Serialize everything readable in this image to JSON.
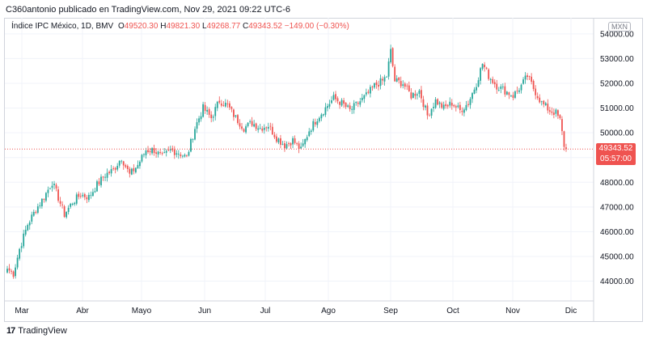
{
  "header": {
    "publisher_line": "C360antonio publicado en TradingView.com, Nov 29, 2021 09:22 UTC-6"
  },
  "legend": {
    "symbol": "Índice IPC México, 1D, BMV",
    "open_label": "O",
    "open_value": "49520.30",
    "high_label": "H",
    "high_value": "49821.30",
    "low_label": "L",
    "low_value": "49268.77",
    "close_label": "C",
    "close_value": "49343.52",
    "change": "−149.00 (−0.30%)"
  },
  "currency": "MXN",
  "last_price": {
    "value": "49343.52",
    "countdown": "05:57:00"
  },
  "footer": {
    "brand": "TradingView",
    "logo_glyph": "17"
  },
  "colors": {
    "up": "#26a69a",
    "down": "#ef5350",
    "grid": "#f0f3fa",
    "axis_text": "#131722",
    "last_price_line": "#ef5350"
  },
  "chart_data": {
    "type": "candlestick",
    "y_axis": {
      "ticks": [
        44000,
        45000,
        46000,
        47000,
        48000,
        49000,
        50000,
        51000,
        52000,
        53000,
        54000
      ],
      "tick_labels": [
        "44000.00",
        "45000.00",
        "46000.00",
        "47000.00",
        "48000.00",
        "49000.00",
        "50000.00",
        "51000.00",
        "52000.00",
        "53000.00",
        "54000.00"
      ],
      "range": [
        43200,
        54650
      ]
    },
    "x_axis": {
      "labels": [
        "Mar",
        "Abr",
        "Mayo",
        "Jun",
        "Jul",
        "Ago",
        "Sep",
        "Oct",
        "Nov",
        "Dic"
      ]
    },
    "grid": true,
    "last_close": 49343.52,
    "anchors": [
      {
        "i": 0,
        "p": 44500
      },
      {
        "i": 3,
        "p": 44300
      },
      {
        "i": 6,
        "p": 45300
      },
      {
        "i": 10,
        "p": 46300
      },
      {
        "i": 14,
        "p": 46900
      },
      {
        "i": 18,
        "p": 47400
      },
      {
        "i": 22,
        "p": 48000
      },
      {
        "i": 24,
        "p": 47600
      },
      {
        "i": 28,
        "p": 46700
      },
      {
        "i": 32,
        "p": 47200
      },
      {
        "i": 36,
        "p": 47500
      },
      {
        "i": 40,
        "p": 47400
      },
      {
        "i": 44,
        "p": 47900
      },
      {
        "i": 48,
        "p": 48300
      },
      {
        "i": 52,
        "p": 48500
      },
      {
        "i": 56,
        "p": 49000
      },
      {
        "i": 60,
        "p": 48300
      },
      {
        "i": 64,
        "p": 48700
      },
      {
        "i": 68,
        "p": 49300
      },
      {
        "i": 72,
        "p": 49300
      },
      {
        "i": 76,
        "p": 49000
      },
      {
        "i": 80,
        "p": 49300
      },
      {
        "i": 84,
        "p": 49200
      },
      {
        "i": 88,
        "p": 49000
      },
      {
        "i": 92,
        "p": 50200
      },
      {
        "i": 96,
        "p": 51000
      },
      {
        "i": 100,
        "p": 50600
      },
      {
        "i": 104,
        "p": 51300
      },
      {
        "i": 108,
        "p": 51100
      },
      {
        "i": 112,
        "p": 50600
      },
      {
        "i": 116,
        "p": 50200
      },
      {
        "i": 120,
        "p": 50400
      },
      {
        "i": 124,
        "p": 50200
      },
      {
        "i": 128,
        "p": 50300
      },
      {
        "i": 132,
        "p": 49800
      },
      {
        "i": 136,
        "p": 49500
      },
      {
        "i": 140,
        "p": 49700
      },
      {
        "i": 144,
        "p": 49300
      },
      {
        "i": 148,
        "p": 50100
      },
      {
        "i": 152,
        "p": 50600
      },
      {
        "i": 156,
        "p": 51000
      },
      {
        "i": 160,
        "p": 51400
      },
      {
        "i": 164,
        "p": 51200
      },
      {
        "i": 168,
        "p": 50900
      },
      {
        "i": 172,
        "p": 51200
      },
      {
        "i": 176,
        "p": 51500
      },
      {
        "i": 180,
        "p": 51900
      },
      {
        "i": 184,
        "p": 52100
      },
      {
        "i": 186,
        "p": 52300
      },
      {
        "i": 188,
        "p": 53300
      },
      {
        "i": 190,
        "p": 52100
      },
      {
        "i": 194,
        "p": 52000
      },
      {
        "i": 198,
        "p": 51500
      },
      {
        "i": 202,
        "p": 51700
      },
      {
        "i": 206,
        "p": 50700
      },
      {
        "i": 210,
        "p": 51300
      },
      {
        "i": 214,
        "p": 51000
      },
      {
        "i": 218,
        "p": 51200
      },
      {
        "i": 222,
        "p": 50900
      },
      {
        "i": 226,
        "p": 51200
      },
      {
        "i": 230,
        "p": 52000
      },
      {
        "i": 233,
        "p": 52800
      },
      {
        "i": 236,
        "p": 52300
      },
      {
        "i": 240,
        "p": 51900
      },
      {
        "i": 244,
        "p": 51700
      },
      {
        "i": 248,
        "p": 51500
      },
      {
        "i": 252,
        "p": 51900
      },
      {
        "i": 255,
        "p": 52300
      },
      {
        "i": 258,
        "p": 51800
      },
      {
        "i": 262,
        "p": 51200
      },
      {
        "i": 266,
        "p": 50900
      },
      {
        "i": 269,
        "p": 50800
      },
      {
        "i": 271,
        "p": 50500
      },
      {
        "i": 273,
        "p": 49500
      },
      {
        "i": 274,
        "p": 49343.52
      }
    ]
  }
}
